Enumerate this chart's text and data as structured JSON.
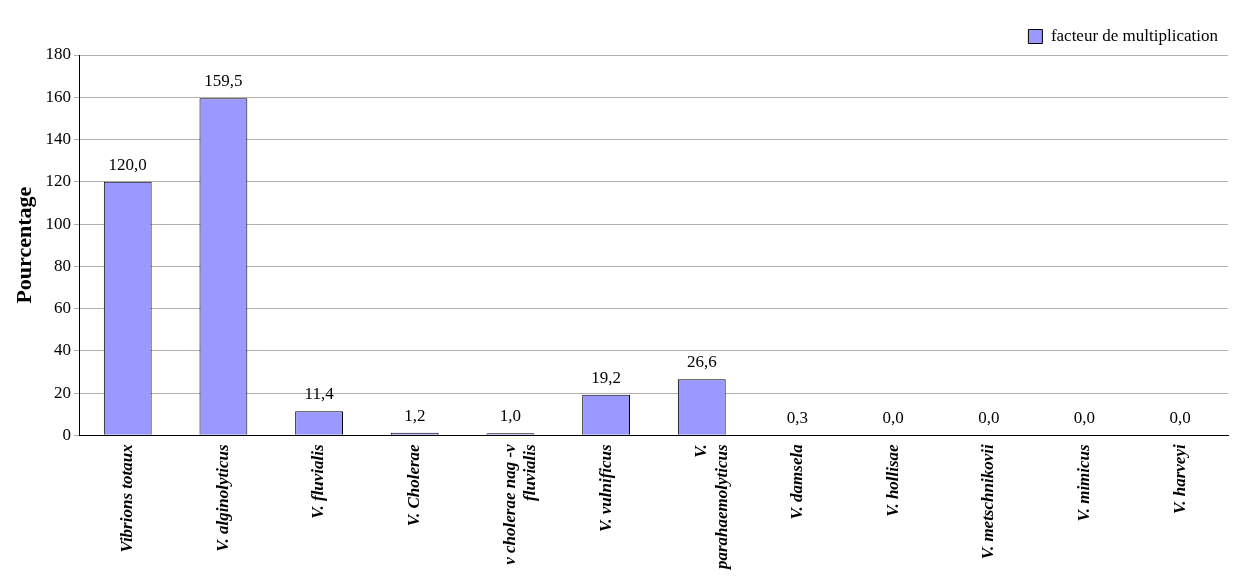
{
  "chart_data": {
    "type": "bar",
    "ylabel": "Pourcentage",
    "categories": [
      "Vibrions totaux",
      "V. alginolyticus",
      "V. fluvialis",
      "V. Cholerae",
      "v cholerae nag -v fluvialis",
      "V. vulnificus",
      "V. parahaemolyticus",
      "V. damsela",
      "V. hollisae",
      "V. metschnikovii",
      "V. mimicus",
      "V. harveyi"
    ],
    "series": [
      {
        "name": "facteur de multiplication",
        "color": "#9999ff",
        "values": [
          120.0,
          159.5,
          11.4,
          1.2,
          1.0,
          19.2,
          26.6,
          0.3,
          0.0,
          0.0,
          0.0,
          0.0
        ],
        "value_labels": [
          "120,0",
          "159,5",
          "11,4",
          "1,2",
          "1,0",
          "19,2",
          "26,6",
          "0,3",
          "0,0",
          "0,0",
          "0,0",
          "0,0"
        ]
      }
    ],
    "ylim": [
      0,
      180
    ],
    "yticks": [
      0,
      20,
      40,
      60,
      80,
      100,
      120,
      140,
      160,
      180
    ],
    "grid": "y",
    "legend": "top right"
  }
}
